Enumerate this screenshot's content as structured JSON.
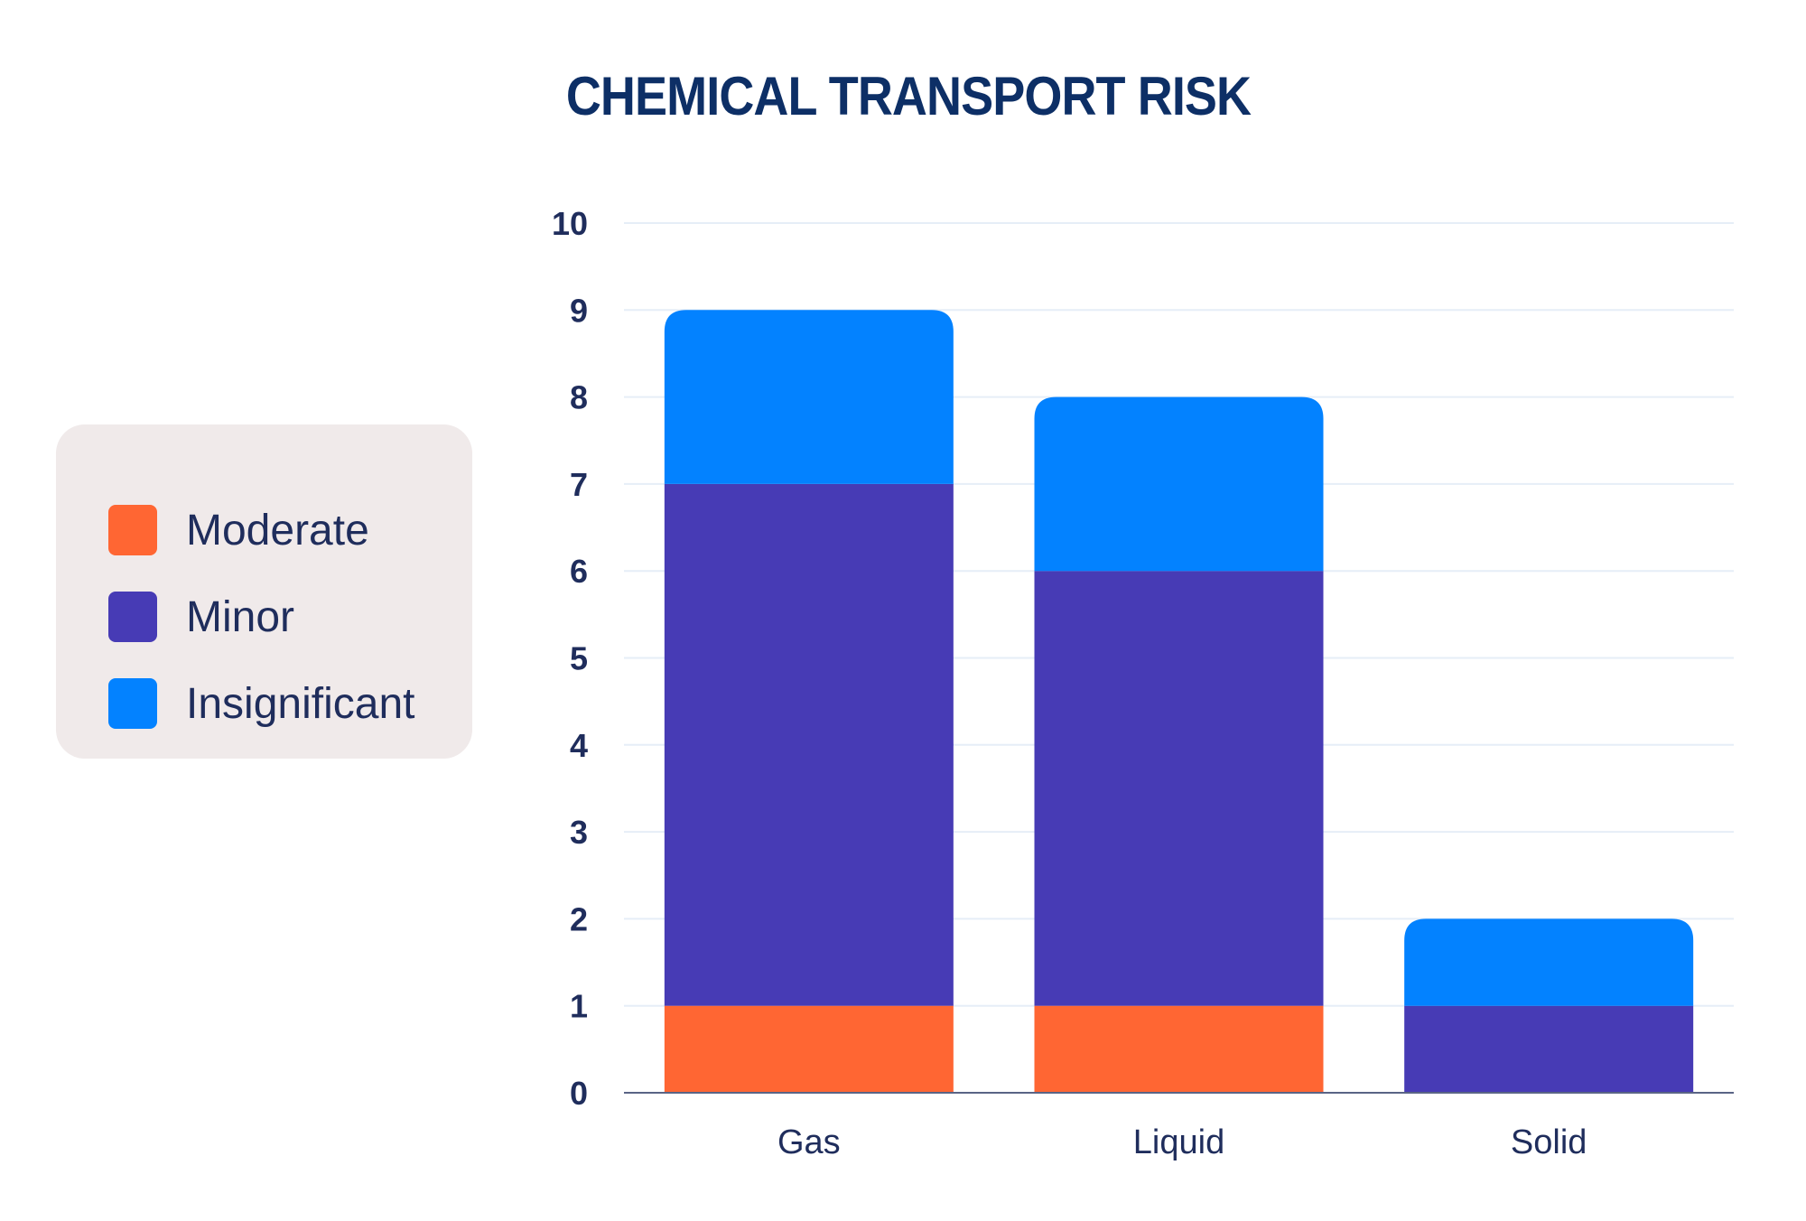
{
  "chart_data": {
    "type": "bar",
    "stacked": true,
    "title": "CHEMICAL TRANSPORT RISK",
    "xlabel": "",
    "ylabel": "",
    "categories": [
      "Gas",
      "Liquid",
      "Solid"
    ],
    "series": [
      {
        "name": "Moderate",
        "values": [
          1,
          1,
          0
        ],
        "color": "#ff6633"
      },
      {
        "name": "Minor",
        "values": [
          6,
          5,
          1
        ],
        "color": "#473bb5"
      },
      {
        "name": "Insignificant",
        "values": [
          2,
          2,
          1
        ],
        "color": "#0382ff"
      }
    ],
    "ylim": [
      0,
      10
    ],
    "yticks": [
      "0",
      "1",
      "2",
      "3",
      "4",
      "5",
      "6",
      "7",
      "8",
      "9",
      "10"
    ],
    "grid": true,
    "legend_position": "left"
  }
}
